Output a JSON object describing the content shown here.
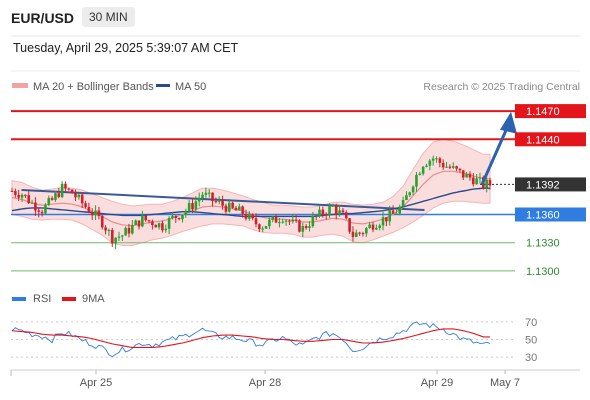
{
  "header": {
    "symbol": "EUR/USD",
    "timeframe": "30 MIN",
    "datetime": "Tuesday, April 29, 2025 5:39:07 AM CET"
  },
  "legend": {
    "ma20": "MA 20 + Bollinger Bands",
    "ma50": "MA 50",
    "copyright": "Research © 2025 Trading Central",
    "rsi": "RSI",
    "rsi_ma": "9MA"
  },
  "colors": {
    "candle_up": "#27a22f",
    "candle_down": "#d4202a",
    "bollinger": "#f5b5b5",
    "ma20": "#e88c8c",
    "ma50": "#2a4a8c",
    "resistance": "#e4141b",
    "support": "#2f7de1",
    "pivot_tag": "#333333",
    "trendline": "#3b5998",
    "arrow": "#2a62b0",
    "weak_level": "#72b972",
    "weak_text": "#2f8a2f"
  },
  "chart_data": [
    {
      "type": "candlestick",
      "title": "EUR/USD",
      "x_labels": [
        "Apr 25",
        "Apr 28",
        "Apr 29",
        "May 7"
      ],
      "ylim": [
        1.1285,
        1.1485
      ],
      "levels": [
        {
          "value": 1.147,
          "label": "1.1470",
          "role": "resistance"
        },
        {
          "value": 1.144,
          "label": "1.1440",
          "role": "resistance"
        },
        {
          "value": 1.1392,
          "label": "1.1392",
          "role": "pivot"
        },
        {
          "value": 1.136,
          "label": "1.1360",
          "role": "support"
        },
        {
          "value": 1.133,
          "label": "1.1330",
          "role": "weak"
        },
        {
          "value": 1.13,
          "label": "1.1300",
          "role": "weak"
        }
      ],
      "series": [
        {
          "name": "MA 20 + Bollinger Bands"
        },
        {
          "name": "MA 50"
        }
      ],
      "close_path": [
        1.1385,
        1.1382,
        1.1372,
        1.1365,
        1.1375,
        1.1388,
        1.1383,
        1.1372,
        1.1362,
        1.1352,
        1.1335,
        1.1338,
        1.1347,
        1.1355,
        1.1352,
        1.1348,
        1.1356,
        1.1362,
        1.137,
        1.1382,
        1.1375,
        1.137,
        1.1365,
        1.1362,
        1.1352,
        1.1348,
        1.1353,
        1.1358,
        1.135,
        1.1345,
        1.1355,
        1.1362,
        1.1368,
        1.1358,
        1.1338,
        1.1342,
        1.135,
        1.1355,
        1.136,
        1.137,
        1.1395,
        1.1415,
        1.142,
        1.1413,
        1.1408,
        1.1402,
        1.1398,
        1.1392
      ],
      "bb_mid": [
        1.1378,
        1.1376,
        1.1372,
        1.137,
        1.1371,
        1.1372,
        1.1371,
        1.1368,
        1.1363,
        1.1358,
        1.1352,
        1.1349,
        1.1348,
        1.135,
        1.1352,
        1.1353,
        1.1356,
        1.136,
        1.1364,
        1.1368,
        1.1369,
        1.1368,
        1.1366,
        1.1364,
        1.136,
        1.1357,
        1.1355,
        1.1355,
        1.1354,
        1.1352,
        1.1352,
        1.1354,
        1.1356,
        1.1355,
        1.1351,
        1.135,
        1.1352,
        1.1355,
        1.136,
        1.1368,
        1.138,
        1.1392,
        1.1402,
        1.1406,
        1.1406,
        1.1404,
        1.1401,
        1.1398
      ],
      "bb_width": [
        0.0018,
        0.0018,
        0.0017,
        0.0016,
        0.0016,
        0.0017,
        0.0017,
        0.0018,
        0.0019,
        0.002,
        0.0022,
        0.0022,
        0.0021,
        0.002,
        0.0019,
        0.0018,
        0.0018,
        0.0018,
        0.0019,
        0.002,
        0.0019,
        0.0018,
        0.0017,
        0.0016,
        0.0016,
        0.0016,
        0.0015,
        0.0015,
        0.0015,
        0.0016,
        0.0016,
        0.0016,
        0.0017,
        0.0018,
        0.002,
        0.002,
        0.0019,
        0.0018,
        0.0019,
        0.0022,
        0.0028,
        0.0033,
        0.0035,
        0.0034,
        0.0032,
        0.003,
        0.0028,
        0.0026
      ],
      "ma50": [
        1.1364,
        1.1366,
        1.1367,
        1.1367,
        1.1366,
        1.1365,
        1.1364,
        1.1363,
        1.1362,
        1.1361,
        1.136,
        1.1359,
        1.1359,
        1.1359,
        1.136,
        1.1361,
        1.1362,
        1.1363,
        1.1363,
        1.1362,
        1.1361,
        1.136,
        1.1359,
        1.1358,
        1.1358,
        1.1358,
        1.1358,
        1.1358,
        1.1358,
        1.1358,
        1.1358,
        1.1359,
        1.136,
        1.1361,
        1.1361,
        1.1362,
        1.1363,
        1.1364,
        1.1366,
        1.1368,
        1.1371,
        1.1374,
        1.1377,
        1.138,
        1.1383,
        1.1385,
        1.1387,
        1.1388
      ],
      "trendline": [
        {
          "x": 0.02,
          "y": 1.1384
        },
        {
          "x": 0.52,
          "y": 1.1369
        }
      ],
      "projection": [
        {
          "x": 0.585,
          "y": 1.1392
        },
        {
          "x": 0.62,
          "y": 1.1465
        }
      ]
    },
    {
      "type": "line",
      "title": "RSI",
      "ylim": [
        20,
        80
      ],
      "yticks": [
        70,
        50,
        30
      ],
      "series": [
        {
          "name": "RSI",
          "values": [
            62,
            60,
            56,
            54,
            50,
            58,
            55,
            49,
            45,
            40,
            34,
            38,
            42,
            46,
            44,
            47,
            50,
            53,
            58,
            61,
            56,
            53,
            52,
            50,
            47,
            44,
            49,
            52,
            46,
            43,
            50,
            55,
            57,
            51,
            38,
            41,
            48,
            52,
            55,
            60,
            66,
            68,
            65,
            62,
            56,
            50,
            47,
            44
          ]
        },
        {
          "name": "9MA",
          "values": [
            60,
            59,
            58,
            56,
            55,
            55,
            54,
            53,
            51,
            48,
            45,
            43,
            41,
            41,
            41,
            42,
            44,
            46,
            49,
            52,
            54,
            55,
            55,
            54,
            53,
            51,
            50,
            50,
            49,
            48,
            48,
            49,
            50,
            50,
            48,
            46,
            46,
            47,
            49,
            51,
            54,
            57,
            60,
            62,
            62,
            60,
            57,
            53
          ]
        }
      ]
    }
  ]
}
